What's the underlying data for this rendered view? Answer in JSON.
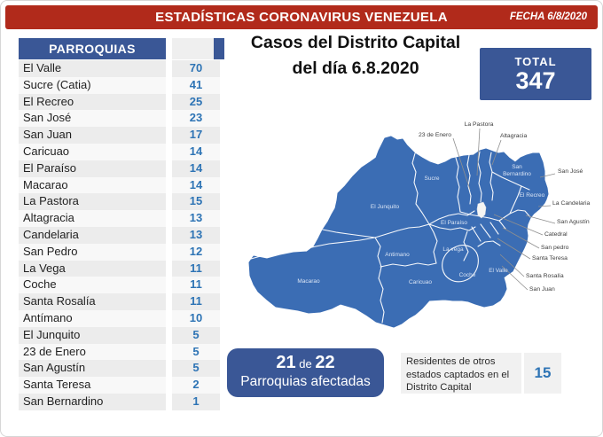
{
  "header": {
    "title": "ESTADÍSTICAS CORONAVIRUS VENEZUELA",
    "date_label": "FECHA 6/8/2020"
  },
  "table": {
    "header": "PARROQUIAS",
    "rows": [
      {
        "name": "El Valle",
        "value": "70"
      },
      {
        "name": "Sucre (Catia)",
        "value": "41"
      },
      {
        "name": "El Recreo",
        "value": "25"
      },
      {
        "name": "San José",
        "value": "23"
      },
      {
        "name": "San Juan",
        "value": "17"
      },
      {
        "name": "Caricuao",
        "value": "14"
      },
      {
        "name": "El Paraíso",
        "value": "14"
      },
      {
        "name": "Macarao",
        "value": "14"
      },
      {
        "name": "La Pastora",
        "value": "15"
      },
      {
        "name": "Altagracia",
        "value": "13"
      },
      {
        "name": "Candelaria",
        "value": "13"
      },
      {
        "name": "San Pedro",
        "value": "12"
      },
      {
        "name": "La Vega",
        "value": "11"
      },
      {
        "name": "Coche",
        "value": "11"
      },
      {
        "name": "Santa Rosalía",
        "value": "11"
      },
      {
        "name": "Antímano",
        "value": "10"
      },
      {
        "name": "El Junquito",
        "value": "5"
      },
      {
        "name": "23 de Enero",
        "value": "5"
      },
      {
        "name": "San Agustín",
        "value": "5"
      },
      {
        "name": "Santa Teresa",
        "value": "2"
      },
      {
        "name": "San Bernardino",
        "value": "1"
      }
    ]
  },
  "main": {
    "title_line1": "Casos del Distrito Capital",
    "title_line2": "del día 6.8.2020",
    "total_label": "TOTAL",
    "total_value": "347"
  },
  "map": {
    "inside_labels": [
      "Sucre",
      "El Junquito",
      "San Bernardino",
      "El Recreo",
      "El Paraíso",
      "La vega",
      "Antimano",
      "Macarao",
      "Caricuao",
      "Coche",
      "El Valle"
    ],
    "callout_labels": [
      "23 de Enero",
      "La Pastora",
      "Altagracia",
      "San José",
      "La Candelaria",
      "San Agustín",
      "Catedral",
      "San pedro",
      "Santa Teresa",
      "Santa Rosalía",
      "San Juan"
    ]
  },
  "footer": {
    "affected": {
      "big1": "21",
      "mid": "de",
      "big2": "22",
      "line2": "Parroquias afectadas"
    },
    "residents_text": "Residentes de otros estados captados en el Distrito Capital",
    "residents_value": "15"
  },
  "colors": {
    "header_red": "#B12A1B",
    "navy": "#3A5796",
    "value_blue": "#2E74B5",
    "map_blue": "#3B6DB4"
  },
  "chart_data": {
    "type": "table",
    "title": "Casos del Distrito Capital del día 6.8.2020",
    "date": "6/8/2020",
    "total": 347,
    "categories": [
      "El Valle",
      "Sucre (Catia)",
      "El Recreo",
      "San José",
      "San Juan",
      "Caricuao",
      "El Paraíso",
      "Macarao",
      "La Pastora",
      "Altagracia",
      "Candelaria",
      "San Pedro",
      "La Vega",
      "Coche",
      "Santa Rosalía",
      "Antímano",
      "El Junquito",
      "23 de Enero",
      "San Agustín",
      "Santa Teresa",
      "San Bernardino"
    ],
    "values": [
      70,
      41,
      25,
      23,
      17,
      14,
      14,
      14,
      15,
      13,
      13,
      12,
      11,
      11,
      11,
      10,
      5,
      5,
      5,
      2,
      1
    ],
    "affected_parishes": 21,
    "total_parishes": 22,
    "other_states_residents": 15
  }
}
